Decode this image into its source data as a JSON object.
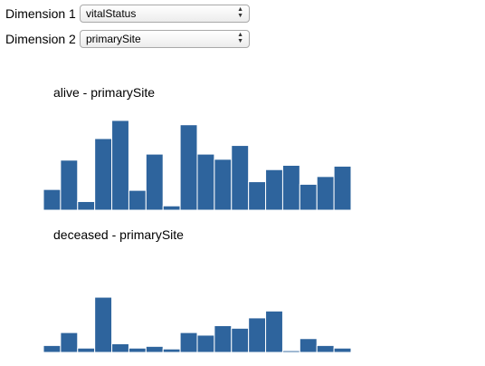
{
  "controls": {
    "dim1": {
      "label": "Dimension 1",
      "value": "vitalStatus"
    },
    "dim2": {
      "label": "Dimension 2",
      "value": "primarySite"
    }
  },
  "colors": {
    "bar": "#2e649d"
  },
  "chart_data": [
    {
      "type": "bar",
      "title": "alive - primarySite",
      "xlabel": "",
      "ylabel": "",
      "values": [
        24,
        58,
        10,
        83,
        104,
        23,
        65,
        5,
        99,
        65,
        59,
        75,
        33,
        47,
        52,
        30,
        39,
        51
      ],
      "ylim": [
        0,
        105
      ]
    },
    {
      "type": "bar",
      "title": "deceased - primarySite",
      "xlabel": "",
      "ylabel": "",
      "values": [
        8,
        23,
        5,
        64,
        10,
        5,
        7,
        4,
        23,
        20,
        31,
        28,
        40,
        48,
        2,
        16,
        8,
        5
      ],
      "ylim": [
        0,
        105
      ]
    }
  ]
}
